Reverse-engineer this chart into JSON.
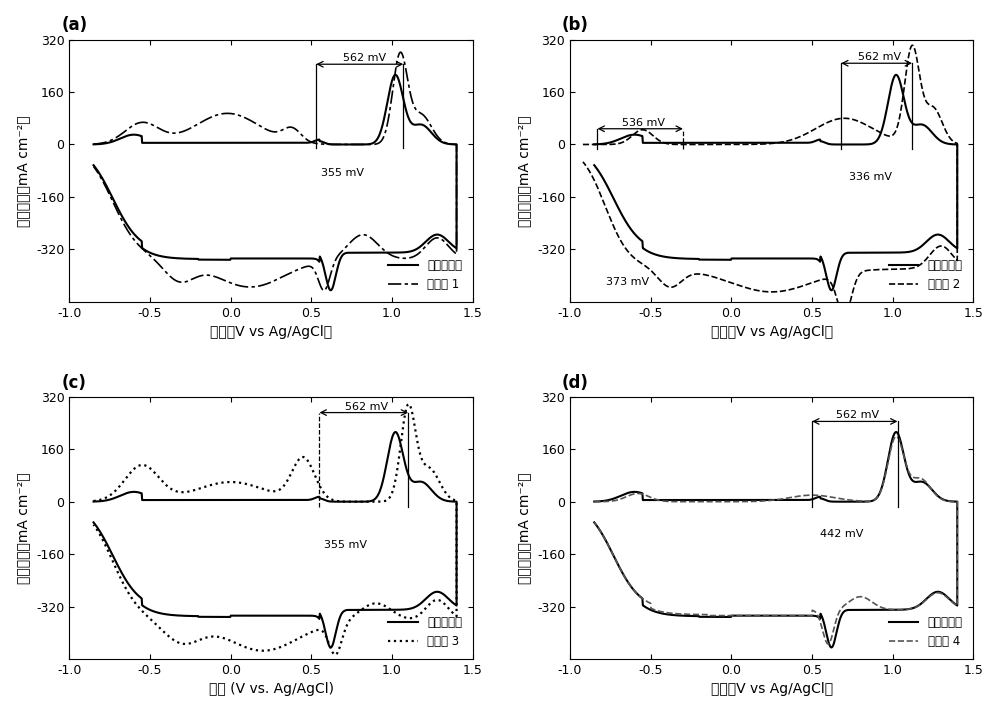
{
  "xlim": [
    -1.0,
    1.5
  ],
  "ylim": [
    -480,
    320
  ],
  "xticks": [
    -1.0,
    -0.5,
    0.0,
    0.5,
    1.0,
    1.5
  ],
  "yticks": [
    -320,
    -160,
    0,
    160,
    320
  ],
  "xlabel_a": "电压（V vs Ag/AgCl）",
  "xlabel_b": "电压（V vs Ag/AgCl）",
  "xlabel_c": "电压 (V vs. Ag/AgCl)",
  "xlabel_d": "电压（V vs Ag/AgCl）",
  "ylabel": "电流密度（mA cm⁻²）",
  "ylabel_top": "mA cm⁻²",
  "legend_blank": "空白石墨沈",
  "legend_s1": "实施例 1",
  "legend_s2": "实施例 2",
  "legend_s3": "实施例 3",
  "legend_s4": "实施例 4",
  "panel_labels": [
    "(a)",
    "(b)",
    "(c)",
    "(d)"
  ]
}
